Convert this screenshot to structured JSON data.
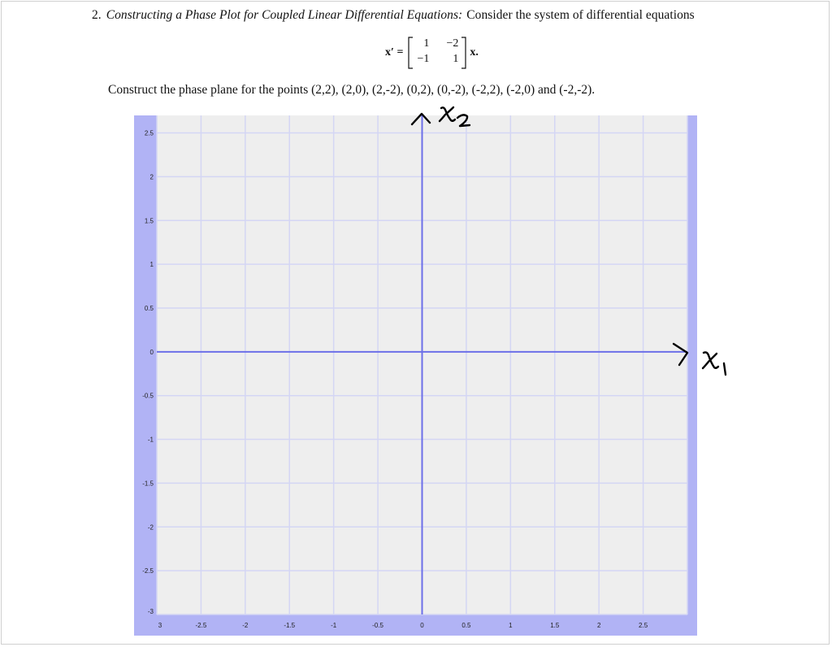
{
  "problem": {
    "number": "2.",
    "title": "Constructing a Phase Plot for Coupled Linear Differential Equations:",
    "text": "Consider the system of differential equations"
  },
  "equation": {
    "lhs": "x′ =",
    "matrix": [
      [
        "1",
        "−2"
      ],
      [
        "−1",
        "1"
      ]
    ],
    "rhs": "x."
  },
  "instruction": "Construct the phase plane for the points (2,2), (2,0), (2,-2), (0,2), (0,-2), (-2,2), (-2,0) and (-2,-2).",
  "colors": {
    "plot_background": "#eeeeee",
    "axis_band": "#b1b3f5",
    "grid": "#d4d6f4",
    "axes": "#6c6fe8"
  },
  "chart_data": {
    "type": "scatter",
    "title": "",
    "xlabel": "",
    "ylabel": "",
    "xlim": [
      -3,
      3
    ],
    "ylim": [
      -3,
      2.7
    ],
    "x_ticks": [
      "3",
      "-2.5",
      "-2",
      "-1.5",
      "-1",
      "-0.5",
      "0",
      "0.5",
      "1",
      "1.5",
      "2",
      "2.5"
    ],
    "y_ticks": [
      "2.5",
      "2",
      "1.5",
      "1",
      "0.5",
      "0",
      "-0.5",
      "-1",
      "-1.5",
      "-2",
      "-2.5",
      "-3"
    ],
    "grid": true,
    "series": []
  },
  "annotations": {
    "x_axis_label": "x1",
    "y_axis_label": "x2"
  }
}
